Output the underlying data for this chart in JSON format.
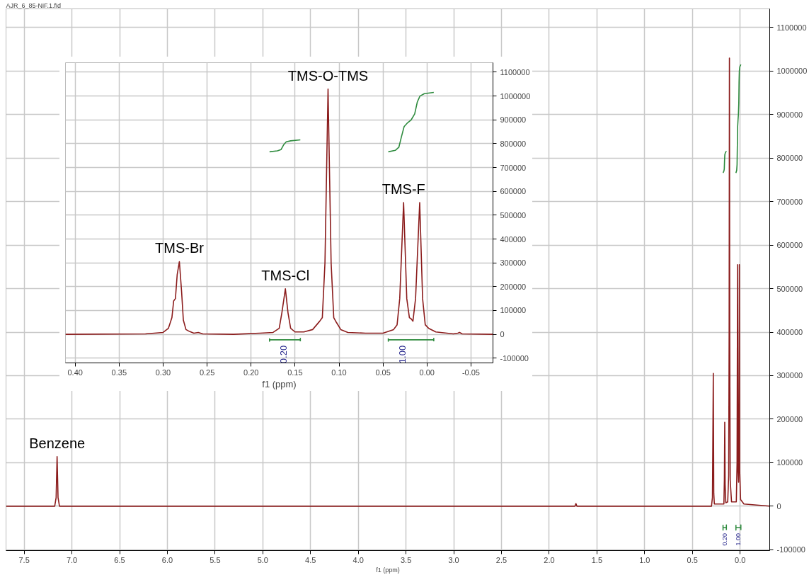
{
  "chart_data": [
    {
      "type": "line",
      "title": "AJR_6_85-NiF.1.fid",
      "xlabel": "f1 (ppm)",
      "xlim": [
        7.69,
        -0.31
      ],
      "ylim": [
        -102000,
        1143000
      ],
      "xticks": [
        {
          "value": 7.5,
          "label": "7.5"
        },
        {
          "value": 7.0,
          "label": "7.0"
        },
        {
          "value": 6.5,
          "label": "6.5"
        },
        {
          "value": 6.0,
          "label": "6.0"
        },
        {
          "value": 5.5,
          "label": "5.5"
        },
        {
          "value": 5.0,
          "label": "5.0"
        },
        {
          "value": 4.5,
          "label": "4.5"
        },
        {
          "value": 4.0,
          "label": "4.0"
        },
        {
          "value": 3.5,
          "label": "3.5"
        },
        {
          "value": 3.0,
          "label": "3.0"
        },
        {
          "value": 2.5,
          "label": "2.5"
        },
        {
          "value": 2.0,
          "label": "2.0"
        },
        {
          "value": 1.5,
          "label": "1.5"
        },
        {
          "value": 1.0,
          "label": "1.0"
        },
        {
          "value": 0.5,
          "label": "0.5"
        },
        {
          "value": 0.0,
          "label": "0.0"
        }
      ],
      "yticks": [
        -100000,
        0,
        100000,
        200000,
        300000,
        400000,
        500000,
        600000,
        700000,
        800000,
        900000,
        1000000,
        1100000
      ],
      "grid": true,
      "series": [
        {
          "color": "#8b1c1c",
          "x": [
            7.69,
            7.18,
            7.165,
            7.155,
            7.145,
            7.13,
            1.73,
            1.72,
            1.71,
            0.3,
            0.29,
            0.286,
            0.281,
            0.276,
            0.27,
            0.17,
            0.165,
            0.161,
            0.157,
            0.15,
            0.13,
            0.12,
            0.115,
            0.112,
            0.109,
            0.104,
            0.09,
            0.04,
            0.032,
            0.027,
            0.022,
            0.016,
            0.012,
            0.008,
            0.004,
            -0.005,
            -0.04,
            -0.31
          ],
          "values": [
            0,
            0,
            20000,
            114000,
            20000,
            0,
            0,
            6000,
            0,
            0,
            20000,
            140000,
            305000,
            30000,
            5000,
            5000,
            60000,
            193000,
            50000,
            8000,
            10000,
            70000,
            400000,
            1030000,
            400000,
            60000,
            10000,
            10000,
            100000,
            555000,
            80000,
            55000,
            200000,
            555000,
            80000,
            15000,
            5000,
            0
          ]
        },
        {
          "color": "#2e8b3e",
          "x": [
            0.179,
            0.17,
            0.166,
            0.163,
            0.16,
            0.155,
            0.144
          ],
          "values": [
            766000,
            770000,
            775000,
            795000,
            808000,
            812000,
            816000
          ]
        },
        {
          "color": "#2e8b3e",
          "x": [
            0.044,
            0.036,
            0.032,
            0.029,
            0.026,
            0.022,
            0.018,
            0.014,
            0.011,
            0.008,
            0.003,
            -0.0077
          ],
          "values": [
            766000,
            772000,
            785000,
            830000,
            872000,
            888000,
            900000,
            925000,
            975000,
            1000000,
            1010000,
            1015000
          ]
        },
        {
          "color": "#2e8b3e",
          "x": [
            0.179,
            0.179,
            0.179,
            0.144,
            0.144,
            0.144
          ],
          "values": [
            -43000,
            -55000,
            -49000,
            -49000,
            -43000,
            -55000
          ]
        },
        {
          "color": "#2e8b3e",
          "x": [
            0.044,
            0.044,
            0.044,
            -0.0077,
            -0.0077,
            -0.0077
          ],
          "values": [
            -43000,
            -55000,
            -49000,
            -49000,
            -43000,
            -55000
          ]
        }
      ],
      "annotations": [
        {
          "text": "Benzene",
          "x": 7.155,
          "y": 114000
        },
        {
          "text": "0.20",
          "x": 0.163,
          "y": -49000
        },
        {
          "text": "1.00",
          "x": 0.02,
          "y": -49000
        }
      ]
    },
    {
      "type": "line",
      "xlabel": "f1 (ppm)",
      "xlim": [
        0.411,
        -0.075
      ],
      "ylim": [
        -120000,
        1140000
      ],
      "xticks": [
        {
          "value": 0.4,
          "label": "0.40"
        },
        {
          "value": 0.35,
          "label": "0.35"
        },
        {
          "value": 0.3,
          "label": "0.30"
        },
        {
          "value": 0.25,
          "label": "0.25"
        },
        {
          "value": 0.2,
          "label": "0.20"
        },
        {
          "value": 0.15,
          "label": "0.15"
        },
        {
          "value": 0.1,
          "label": "0.10"
        },
        {
          "value": 0.05,
          "label": "0.05"
        },
        {
          "value": 0.0,
          "label": "0.00"
        },
        {
          "value": -0.05,
          "label": "-0.05"
        }
      ],
      "yticks": [
        -100000,
        0,
        100000,
        200000,
        300000,
        400000,
        500000,
        600000,
        700000,
        800000,
        900000,
        1000000,
        1100000
      ],
      "grid": true,
      "series": [
        {
          "color": "#8b1c1c",
          "x": [
            0.411,
            0.32,
            0.3,
            0.294,
            0.29,
            0.288,
            0.286,
            0.284,
            0.2815,
            0.279,
            0.277,
            0.274,
            0.27,
            0.265,
            0.26,
            0.255,
            0.22,
            0.19,
            0.175,
            0.168,
            0.165,
            0.161,
            0.158,
            0.155,
            0.15,
            0.14,
            0.13,
            0.122,
            0.119,
            0.116,
            0.1125,
            0.109,
            0.106,
            0.103,
            0.098,
            0.09,
            0.07,
            0.05,
            0.038,
            0.034,
            0.031,
            0.0266,
            0.023,
            0.02,
            0.018,
            0.016,
            0.013,
            0.0083,
            0.005,
            0.002,
            -0.002,
            -0.01,
            -0.03,
            -0.035,
            -0.037,
            -0.04,
            -0.075
          ],
          "values": [
            0,
            2000,
            8000,
            25000,
            70000,
            140000,
            150000,
            250000,
            305000,
            180000,
            60000,
            20000,
            12000,
            5000,
            8000,
            2000,
            0,
            5000,
            8000,
            25000,
            90000,
            191000,
            90000,
            25000,
            10000,
            10000,
            20000,
            55000,
            70000,
            300000,
            1029000,
            300000,
            70000,
            50000,
            20000,
            8000,
            5000,
            5000,
            20000,
            40000,
            150000,
            553000,
            150000,
            70000,
            65000,
            55000,
            150000,
            553000,
            150000,
            40000,
            25000,
            10000,
            2000,
            5000,
            8000,
            2000,
            0
          ]
        },
        {
          "color": "#2e8b3e",
          "x": [
            0.179,
            0.17,
            0.166,
            0.163,
            0.16,
            0.155,
            0.144
          ],
          "values": [
            766000,
            770000,
            775000,
            795000,
            808000,
            812000,
            816000
          ]
        },
        {
          "color": "#2e8b3e",
          "x": [
            0.044,
            0.036,
            0.032,
            0.029,
            0.026,
            0.022,
            0.018,
            0.014,
            0.011,
            0.008,
            0.003,
            -0.0077
          ],
          "values": [
            766000,
            772000,
            785000,
            830000,
            872000,
            888000,
            900000,
            925000,
            975000,
            1000000,
            1010000,
            1015000
          ]
        },
        {
          "color": "#2e8b3e",
          "x": [
            0.179,
            0.179,
            0.179,
            0.144,
            0.144,
            0.144
          ],
          "values": [
            -17000,
            -29000,
            -23000,
            -23000,
            -17000,
            -29000
          ]
        },
        {
          "color": "#2e8b3e",
          "x": [
            0.044,
            0.044,
            0.044,
            -0.0077,
            -0.0077,
            -0.0077
          ],
          "values": [
            -17000,
            -29000,
            -23000,
            -23000,
            -17000,
            -29000
          ]
        }
      ],
      "annotations": [
        {
          "text": "TMS-Br",
          "x": 0.2815,
          "y": 305000
        },
        {
          "text": "TMS-Cl",
          "x": 0.161,
          "y": 191000
        },
        {
          "text": "TMS-O-TMS",
          "x": 0.1125,
          "y": 1029000
        },
        {
          "text": "TMS-F",
          "x": 0.0266,
          "y": 553000
        },
        {
          "text": "0.20",
          "x": 0.163,
          "y": -23000
        },
        {
          "text": "1.00",
          "x": 0.028,
          "y": -23000
        }
      ]
    }
  ]
}
